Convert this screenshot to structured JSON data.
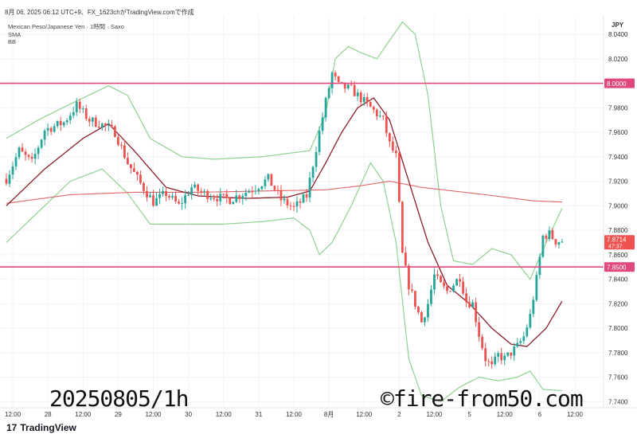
{
  "header": {
    "title_line": "8月 06, 2025 06:12 UTC+9、FX_1623chがTradingView.comで作成"
  },
  "legend": {
    "symbol": "Mexican Peso/Japanese Yen · 1時間 · Saxo",
    "indicator_sma": "SMA",
    "indicator_bb": "BB"
  },
  "watermark": {
    "date_text": "20250805/1h",
    "site_text": "©fire-from50.com"
  },
  "footer": {
    "logo_mark": "17",
    "logo_text": "TradingView"
  },
  "colors": {
    "up": "#26a69a",
    "down": "#ef5350",
    "bb_band": "#8fd18f",
    "sma_short": "#8b1e2a",
    "sma_long": "#e06666",
    "hline": "#e0487a",
    "axis_text": "#333333",
    "price_tag_bg": "#ef5350"
  },
  "chart_data": {
    "type": "candlestick",
    "currency": "JPY",
    "ylim": [
      7.735,
      8.055
    ],
    "y_ticks": [
      {
        "value": 8.04,
        "label": "8.0400"
      },
      {
        "value": 8.02,
        "label": "8.0200"
      },
      {
        "value": 7.98,
        "label": "7.9800"
      },
      {
        "value": 7.96,
        "label": "7.9600"
      },
      {
        "value": 7.94,
        "label": "7.9400"
      },
      {
        "value": 7.92,
        "label": "7.9200"
      },
      {
        "value": 7.9,
        "label": "7.9000"
      },
      {
        "value": 7.88,
        "label": "7.8800"
      },
      {
        "value": 7.86,
        "label": "7.8600"
      },
      {
        "value": 7.84,
        "label": "7.8400"
      },
      {
        "value": 7.82,
        "label": "7.8200"
      },
      {
        "value": 7.8,
        "label": "7.8000"
      },
      {
        "value": 7.78,
        "label": "7.7800"
      },
      {
        "value": 7.76,
        "label": "7.7600"
      },
      {
        "value": 7.74,
        "label": "7.7400"
      }
    ],
    "x_ticks": [
      {
        "bar": 2,
        "label": "12:00"
      },
      {
        "bar": 13,
        "label": "28"
      },
      {
        "bar": 24,
        "label": "12:00"
      },
      {
        "bar": 35,
        "label": "29"
      },
      {
        "bar": 46,
        "label": "12:00"
      },
      {
        "bar": 57,
        "label": "30"
      },
      {
        "bar": 68,
        "label": "12:00"
      },
      {
        "bar": 79,
        "label": "31"
      },
      {
        "bar": 90,
        "label": "12:00"
      },
      {
        "bar": 101,
        "label": "8月"
      },
      {
        "bar": 112,
        "label": "12:00"
      },
      {
        "bar": 123,
        "label": "2"
      },
      {
        "bar": 134,
        "label": "12:00"
      },
      {
        "bar": 145,
        "label": "5"
      },
      {
        "bar": 156,
        "label": "12:00"
      },
      {
        "bar": 167,
        "label": "6"
      },
      {
        "bar": 178,
        "label": "12:00"
      }
    ],
    "horizontal_lines": [
      {
        "value": 8.0,
        "label": "8.0000"
      },
      {
        "value": 7.85,
        "label": "7.8500"
      }
    ],
    "last_price": {
      "value": 7.8714,
      "label": "7.8714",
      "countdown": "47:37"
    },
    "sma_short_keys": [
      [
        0,
        7.9
      ],
      [
        12,
        7.93
      ],
      [
        24,
        7.955
      ],
      [
        32,
        7.967
      ],
      [
        40,
        7.945
      ],
      [
        50,
        7.915
      ],
      [
        60,
        7.908
      ],
      [
        75,
        7.906
      ],
      [
        88,
        7.907
      ],
      [
        95,
        7.912
      ],
      [
        100,
        7.935
      ],
      [
        105,
        7.96
      ],
      [
        110,
        7.98
      ],
      [
        115,
        7.988
      ],
      [
        120,
        7.97
      ],
      [
        126,
        7.92
      ],
      [
        132,
        7.87
      ],
      [
        138,
        7.835
      ],
      [
        145,
        7.82
      ],
      [
        152,
        7.8
      ],
      [
        158,
        7.787
      ],
      [
        163,
        7.785
      ],
      [
        169,
        7.8
      ],
      [
        174,
        7.822
      ]
    ],
    "sma_long_keys": [
      [
        0,
        7.902
      ],
      [
        20,
        7.909
      ],
      [
        40,
        7.911
      ],
      [
        60,
        7.911
      ],
      [
        80,
        7.912
      ],
      [
        100,
        7.913
      ],
      [
        110,
        7.916
      ],
      [
        120,
        7.92
      ],
      [
        130,
        7.915
      ],
      [
        150,
        7.909
      ],
      [
        165,
        7.904
      ],
      [
        174,
        7.903
      ]
    ],
    "bb_upper_keys": [
      [
        0,
        7.955
      ],
      [
        10,
        7.97
      ],
      [
        20,
        7.983
      ],
      [
        32,
        7.998
      ],
      [
        38,
        7.99
      ],
      [
        45,
        7.955
      ],
      [
        55,
        7.94
      ],
      [
        65,
        7.938
      ],
      [
        80,
        7.94
      ],
      [
        95,
        7.945
      ],
      [
        100,
        7.975
      ],
      [
        103,
        8.02
      ],
      [
        107,
        8.03
      ],
      [
        111,
        8.025
      ],
      [
        116,
        8.02
      ],
      [
        120,
        8.035
      ],
      [
        124,
        8.05
      ],
      [
        128,
        8.04
      ],
      [
        132,
        7.99
      ],
      [
        136,
        7.9
      ],
      [
        140,
        7.855
      ],
      [
        146,
        7.852
      ],
      [
        152,
        7.865
      ],
      [
        158,
        7.86
      ],
      [
        164,
        7.84
      ],
      [
        169,
        7.87
      ],
      [
        174,
        7.898
      ]
    ],
    "bb_lower_keys": [
      [
        0,
        7.87
      ],
      [
        10,
        7.895
      ],
      [
        20,
        7.92
      ],
      [
        30,
        7.93
      ],
      [
        38,
        7.91
      ],
      [
        45,
        7.885
      ],
      [
        55,
        7.885
      ],
      [
        68,
        7.885
      ],
      [
        80,
        7.887
      ],
      [
        90,
        7.89
      ],
      [
        95,
        7.88
      ],
      [
        98,
        7.86
      ],
      [
        102,
        7.87
      ],
      [
        108,
        7.9
      ],
      [
        114,
        7.935
      ],
      [
        118,
        7.92
      ],
      [
        122,
        7.87
      ],
      [
        126,
        7.775
      ],
      [
        130,
        7.745
      ],
      [
        136,
        7.74
      ],
      [
        142,
        7.752
      ],
      [
        148,
        7.76
      ],
      [
        154,
        7.757
      ],
      [
        160,
        7.76
      ],
      [
        164,
        7.765
      ],
      [
        168,
        7.75
      ],
      [
        174,
        7.749
      ]
    ],
    "close_keys": [
      [
        0,
        7.922
      ],
      [
        4,
        7.945
      ],
      [
        8,
        7.935
      ],
      [
        12,
        7.962
      ],
      [
        18,
        7.968
      ],
      [
        22,
        7.982
      ],
      [
        26,
        7.97
      ],
      [
        30,
        7.966
      ],
      [
        34,
        7.96
      ],
      [
        38,
        7.935
      ],
      [
        42,
        7.918
      ],
      [
        46,
        7.903
      ],
      [
        50,
        7.91
      ],
      [
        54,
        7.9
      ],
      [
        58,
        7.915
      ],
      [
        62,
        7.91
      ],
      [
        66,
        7.907
      ],
      [
        70,
        7.905
      ],
      [
        74,
        7.91
      ],
      [
        78,
        7.915
      ],
      [
        82,
        7.922
      ],
      [
        86,
        7.905
      ],
      [
        90,
        7.898
      ],
      [
        94,
        7.908
      ],
      [
        98,
        7.96
      ],
      [
        100,
        7.985
      ],
      [
        102,
        8.008
      ],
      [
        104,
        7.998
      ],
      [
        108,
        7.995
      ],
      [
        112,
        7.985
      ],
      [
        116,
        7.975
      ],
      [
        118,
        7.97
      ],
      [
        120,
        7.95
      ],
      [
        122,
        7.94
      ],
      [
        124,
        7.86
      ],
      [
        126,
        7.835
      ],
      [
        128,
        7.82
      ],
      [
        130,
        7.805
      ],
      [
        132,
        7.82
      ],
      [
        134,
        7.843
      ],
      [
        136,
        7.835
      ],
      [
        138,
        7.83
      ],
      [
        142,
        7.842
      ],
      [
        144,
        7.822
      ],
      [
        146,
        7.82
      ],
      [
        148,
        7.795
      ],
      [
        150,
        7.775
      ],
      [
        152,
        7.768
      ],
      [
        154,
        7.778
      ],
      [
        156,
        7.775
      ],
      [
        158,
        7.78
      ],
      [
        160,
        7.785
      ],
      [
        162,
        7.793
      ],
      [
        164,
        7.81
      ],
      [
        166,
        7.84
      ],
      [
        168,
        7.875
      ],
      [
        170,
        7.877
      ],
      [
        172,
        7.871
      ],
      [
        174,
        7.8714
      ]
    ]
  }
}
